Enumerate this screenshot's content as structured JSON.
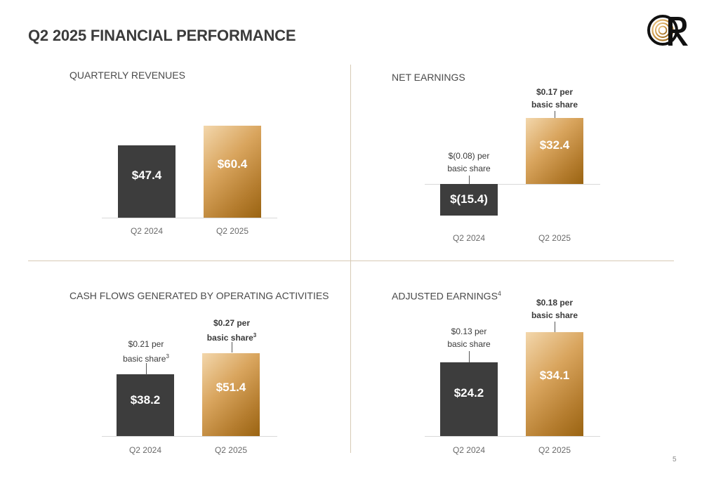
{
  "title": "Q2 2025 FINANCIAL PERFORMANCE",
  "page_number": "5",
  "colors": {
    "dark_bar": "#3d3d3d",
    "gold_bar": "#c48c3f",
    "divider": "#d7cab5"
  },
  "panels": [
    {
      "title": "QUARTERLY REVENUES",
      "title_sup": "",
      "bars": [
        {
          "category": "Q2 2024",
          "label": "$47.4",
          "annotation_line1": "",
          "annotation_line2": "",
          "annotation_sup": ""
        },
        {
          "category": "Q2 2025",
          "label": "$60.4",
          "annotation_line1": "",
          "annotation_line2": "",
          "annotation_sup": ""
        }
      ]
    },
    {
      "title": "NET EARNINGS",
      "title_sup": "",
      "bars": [
        {
          "category": "Q2 2024",
          "label": "$(15.4)",
          "annotation_line1": "$(0.08) per",
          "annotation_line2": "basic share",
          "annotation_sup": ""
        },
        {
          "category": "Q2 2025",
          "label": "$32.4",
          "annotation_line1": "$0.17 per",
          "annotation_line2": "basic share",
          "annotation_sup": ""
        }
      ]
    },
    {
      "title": "CASH FLOWS GENERATED BY OPERATING ACTIVITIES",
      "title_sup": "",
      "bars": [
        {
          "category": "Q2 2024",
          "label": "$38.2",
          "annotation_line1": "$0.21 per",
          "annotation_line2": "basic share",
          "annotation_sup": "3"
        },
        {
          "category": "Q2 2025",
          "label": "$51.4",
          "annotation_line1": "$0.27 per",
          "annotation_line2": "basic share",
          "annotation_sup": "3"
        }
      ]
    },
    {
      "title": "ADJUSTED EARNINGS",
      "title_sup": "4",
      "bars": [
        {
          "category": "Q2 2024",
          "label": "$24.2",
          "annotation_line1": "$0.13 per",
          "annotation_line2": "basic share",
          "annotation_sup": ""
        },
        {
          "category": "Q2 2025",
          "label": "$34.1",
          "annotation_line1": "$0.18 per",
          "annotation_line2": "basic share",
          "annotation_sup": ""
        }
      ]
    }
  ],
  "chart_data": [
    {
      "type": "bar",
      "title": "QUARTERLY REVENUES",
      "categories": [
        "Q2 2024",
        "Q2 2025"
      ],
      "values": [
        47.4,
        60.4
      ],
      "ylim": [
        0,
        60.4
      ]
    },
    {
      "type": "bar",
      "title": "NET EARNINGS",
      "categories": [
        "Q2 2024",
        "Q2 2025"
      ],
      "values": [
        -15.4,
        32.4
      ],
      "annotations": [
        "$(0.08) per basic share",
        "$0.17 per basic share"
      ]
    },
    {
      "type": "bar",
      "title": "CASH FLOWS GENERATED BY OPERATING ACTIVITIES",
      "categories": [
        "Q2 2024",
        "Q2 2025"
      ],
      "values": [
        38.2,
        51.4
      ],
      "annotations": [
        "$0.21 per basic share",
        "$0.27 per basic share"
      ]
    },
    {
      "type": "bar",
      "title": "ADJUSTED EARNINGS",
      "categories": [
        "Q2 2024",
        "Q2 2025"
      ],
      "values": [
        24.2,
        34.1
      ],
      "annotations": [
        "$0.13 per basic share",
        "$0.18 per basic share"
      ]
    }
  ]
}
